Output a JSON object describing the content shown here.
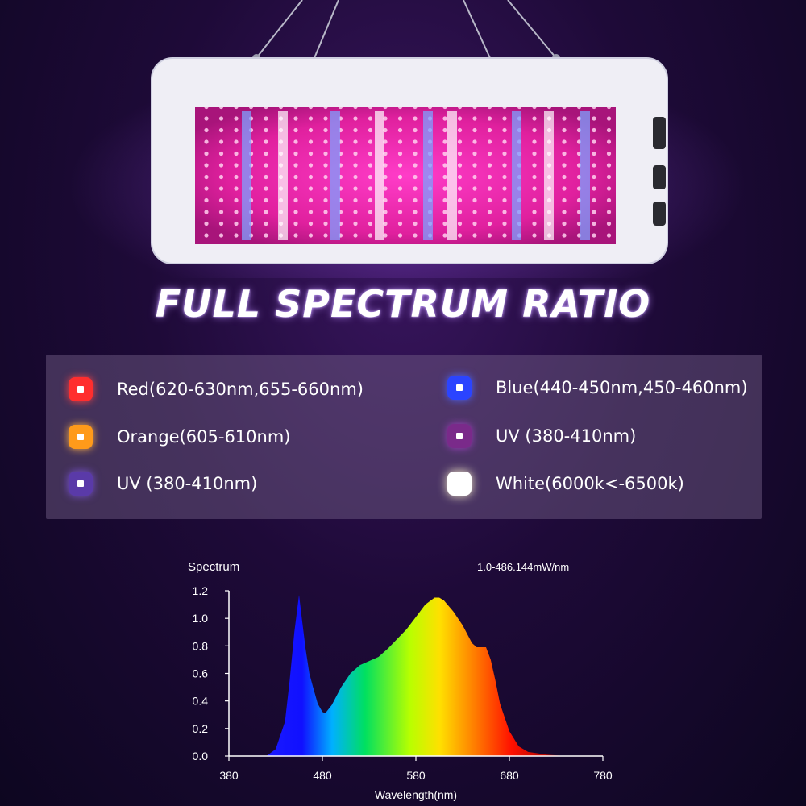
{
  "title": "FULL SPECTRUM RATIO",
  "legend": [
    {
      "label": "Red(620-630nm,655-660nm)",
      "color": "#ff2e2e",
      "glow": "#ff4444"
    },
    {
      "label": "Blue(440-450nm,450-460nm)",
      "color": "#2b44ff",
      "glow": "#4d66ff"
    },
    {
      "label": "Orange(605-610nm)",
      "color": "#ff9a1a",
      "glow": "#ffb347"
    },
    {
      "label": "UV (380-410nm)",
      "color": "#7a2a8a",
      "glow": "#a040c0"
    },
    {
      "label": "UV (380-410nm)",
      "color": "#5a3aa8",
      "glow": "#7b55d8"
    },
    {
      "label": "White(6000k<-6500k)",
      "color": "#ffffff",
      "glow": "#fff6cc"
    }
  ],
  "chart_data": {
    "type": "area",
    "title": "Spectrum",
    "subtitle": "1.0-486.144mW/nm",
    "xlabel": "Wavelength(nm)",
    "ylabel": "",
    "xlim": [
      380,
      780
    ],
    "ylim": [
      0,
      1.2
    ],
    "xticks": [
      "380",
      "480",
      "580",
      "680",
      "780"
    ],
    "yticks": [
      "0.0",
      "0.2",
      "0.4",
      "0.6",
      "0.8",
      "1.0",
      "1.2"
    ],
    "x": [
      420,
      430,
      440,
      445,
      450,
      455,
      458,
      462,
      466,
      470,
      475,
      480,
      483,
      490,
      500,
      510,
      520,
      530,
      540,
      550,
      560,
      570,
      580,
      590,
      600,
      605,
      610,
      620,
      630,
      640,
      645,
      650,
      655,
      660,
      665,
      670,
      680,
      690,
      700,
      720,
      740
    ],
    "y": [
      0,
      0.05,
      0.25,
      0.55,
      0.9,
      1.17,
      1.0,
      0.78,
      0.6,
      0.5,
      0.38,
      0.32,
      0.31,
      0.37,
      0.5,
      0.6,
      0.66,
      0.69,
      0.72,
      0.78,
      0.85,
      0.92,
      1.01,
      1.1,
      1.15,
      1.15,
      1.13,
      1.05,
      0.95,
      0.82,
      0.79,
      0.79,
      0.79,
      0.7,
      0.55,
      0.38,
      0.18,
      0.07,
      0.03,
      0.01,
      0
    ]
  }
}
